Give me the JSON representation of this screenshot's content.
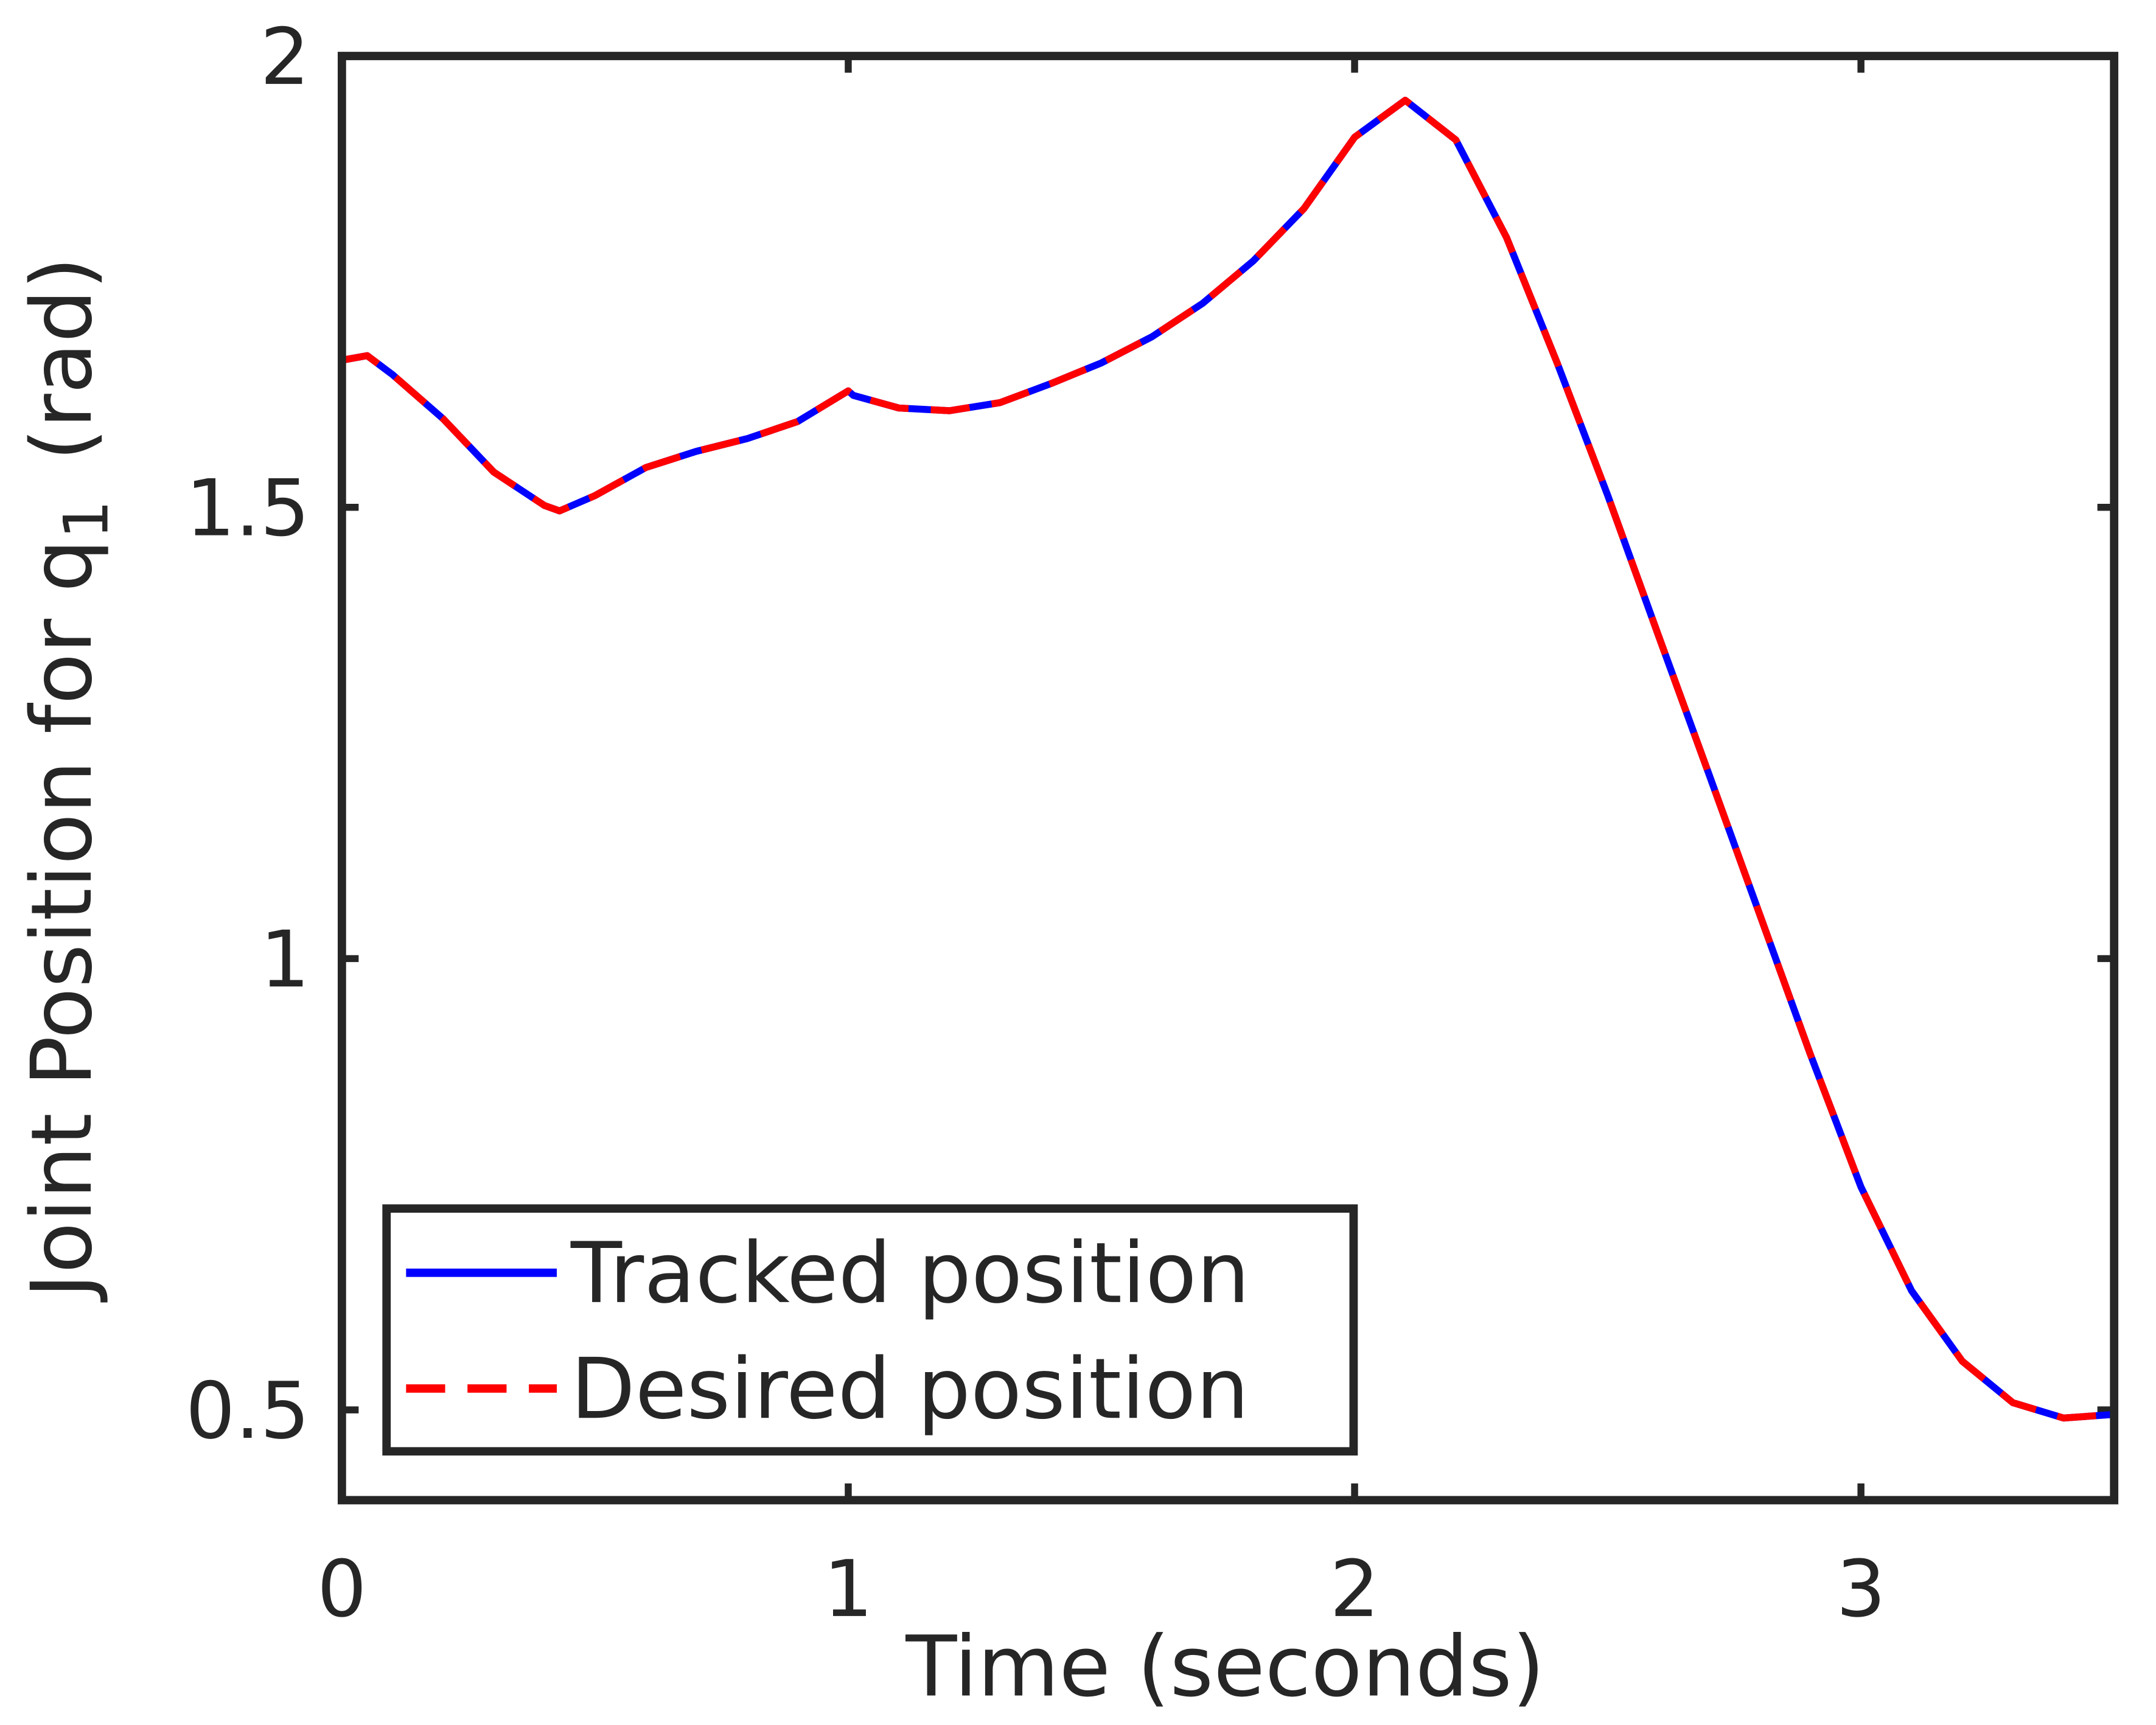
{
  "chart_data": {
    "type": "line",
    "xlabel": "Time (seconds)",
    "ylabel": {
      "text": "Joint Position for q",
      "subscript": "1",
      "unit": "(rad)"
    },
    "x": [
      0,
      0.05,
      0.1,
      0.2,
      0.3,
      0.4,
      0.43,
      0.5,
      0.6,
      0.7,
      0.8,
      0.9,
      1.0,
      1.01,
      1.1,
      1.2,
      1.3,
      1.4,
      1.5,
      1.6,
      1.7,
      1.8,
      1.9,
      2.0,
      2.1,
      2.2,
      2.3,
      2.4,
      2.5,
      2.6,
      2.7,
      2.8,
      2.9,
      3.0,
      3.1,
      3.2,
      3.3,
      3.4,
      3.5
    ],
    "series": [
      {
        "name": "Tracked position",
        "color": "#0000ff",
        "style": "solid",
        "values": [
          1.663,
          1.668,
          1.647,
          1.598,
          1.539,
          1.502,
          1.496,
          1.513,
          1.544,
          1.562,
          1.576,
          1.595,
          1.629,
          1.624,
          1.61,
          1.607,
          1.616,
          1.637,
          1.66,
          1.689,
          1.726,
          1.773,
          1.831,
          1.91,
          1.951,
          1.907,
          1.799,
          1.66,
          1.513,
          1.358,
          1.204,
          1.049,
          0.894,
          0.747,
          0.632,
          0.554,
          0.508,
          0.491,
          0.495
        ]
      },
      {
        "name": "Desired position",
        "color": "#ff0000",
        "style": "dashed",
        "values": [
          1.663,
          1.668,
          1.647,
          1.598,
          1.539,
          1.502,
          1.496,
          1.513,
          1.544,
          1.562,
          1.576,
          1.595,
          1.629,
          1.624,
          1.61,
          1.607,
          1.616,
          1.637,
          1.66,
          1.689,
          1.726,
          1.773,
          1.831,
          1.91,
          1.951,
          1.907,
          1.799,
          1.66,
          1.513,
          1.358,
          1.204,
          1.049,
          0.894,
          0.747,
          0.632,
          0.554,
          0.508,
          0.491,
          0.495
        ]
      }
    ],
    "xlim": [
      0,
      3.5
    ],
    "ylim": [
      0.4,
      2
    ],
    "xticks": [
      0,
      1,
      2,
      3
    ],
    "yticks": [
      0.5,
      1,
      1.5,
      2
    ],
    "grid": false,
    "legend": "lower left"
  }
}
